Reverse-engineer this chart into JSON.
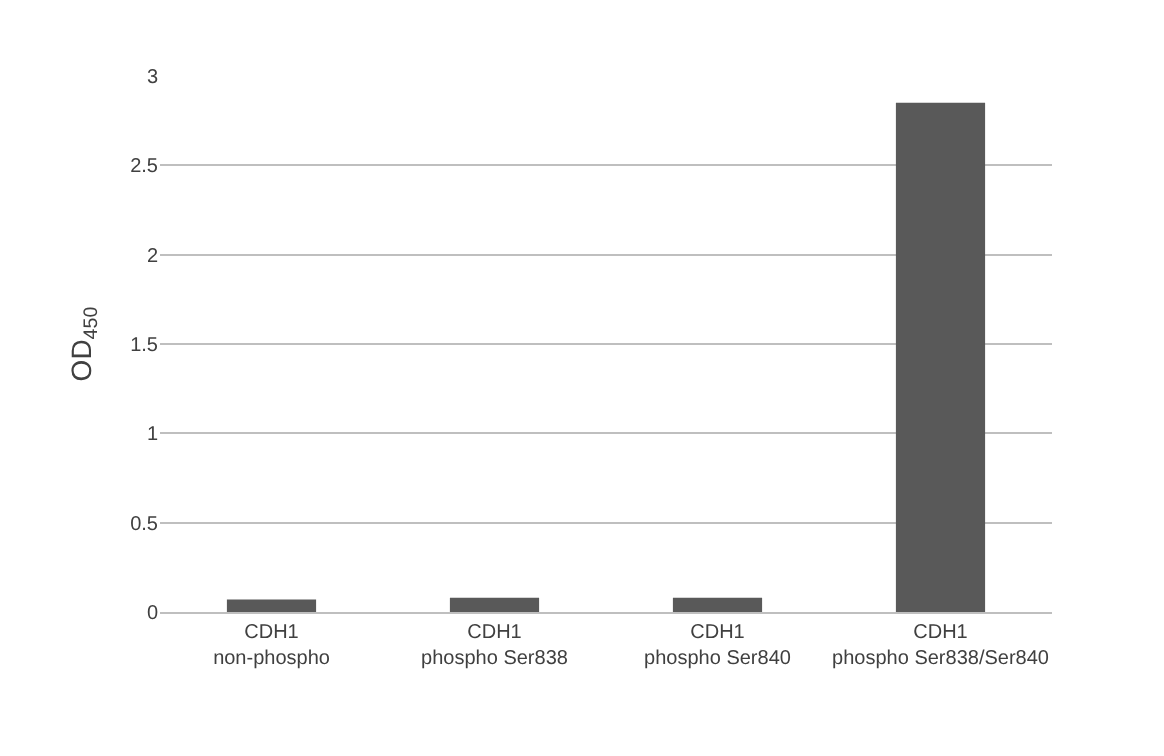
{
  "chart_data": {
    "type": "bar",
    "ylabel": "OD$_{450}$",
    "categories": [
      "CDH1\nnon-phospho",
      "CDH1\nphospho Ser838",
      "CDH1\nphospho Ser840",
      "CDH1\nphospho Ser838/Ser840"
    ],
    "values": [
      0.07,
      0.08,
      0.08,
      2.85
    ],
    "color": "#595959",
    "ylim": [
      0,
      3
    ],
    "yticks": [
      0,
      0.5,
      1,
      1.5,
      2,
      2.5,
      3
    ],
    "grid": "y"
  }
}
